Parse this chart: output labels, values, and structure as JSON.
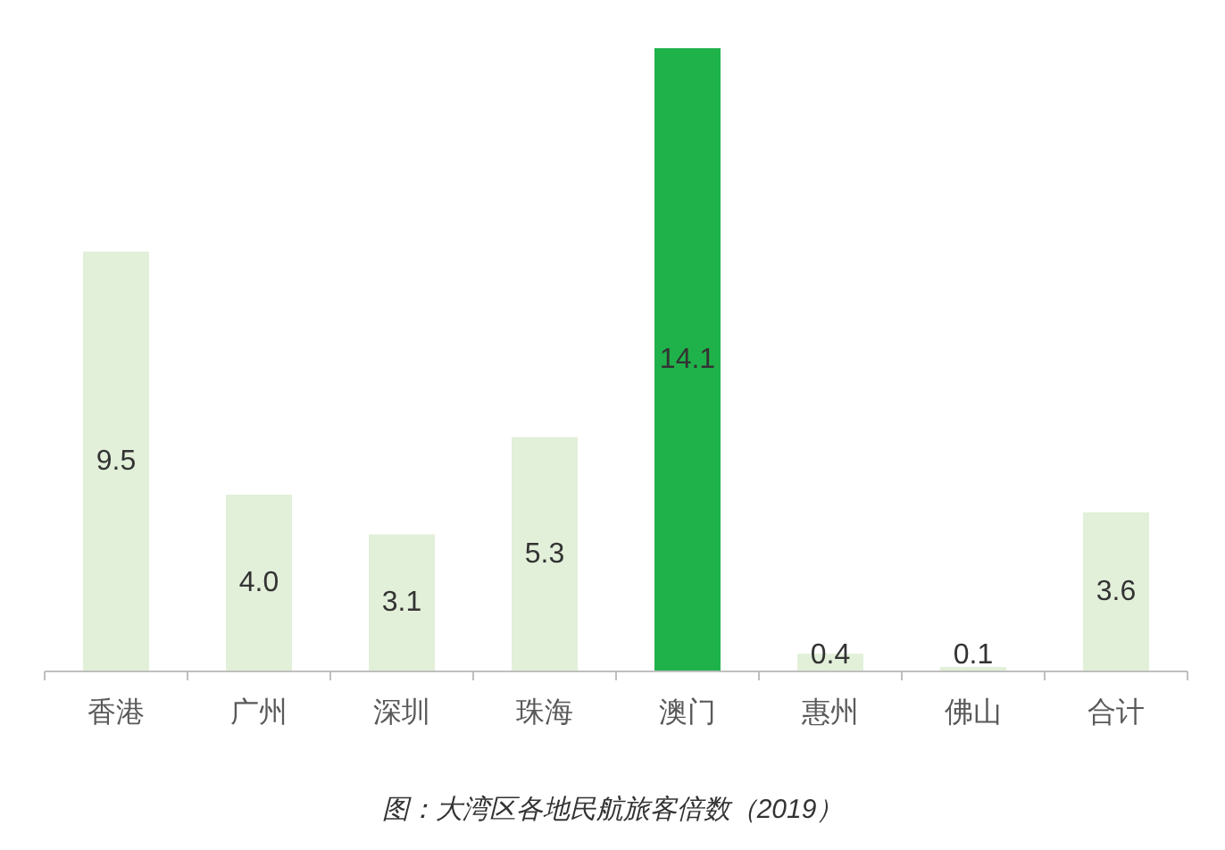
{
  "chart_data": {
    "type": "bar",
    "categories": [
      "香港",
      "广州",
      "深圳",
      "珠海",
      "澳门",
      "惠州",
      "佛山",
      "合计"
    ],
    "values": [
      9.5,
      4.0,
      3.1,
      5.3,
      14.1,
      0.4,
      0.1,
      3.6
    ],
    "value_labels": [
      "9.5",
      "4.0",
      "3.1",
      "5.3",
      "14.1",
      "0.4",
      "0.1",
      "3.6"
    ],
    "colors": [
      "#e2efd9",
      "#e2efd9",
      "#e2efd9",
      "#e2efd9",
      "#1fb24a",
      "#e2efd9",
      "#e2efd9",
      "#e2efd9"
    ],
    "annotations": [
      "图：大湾区各地民航旅客倍数（2019）"
    ]
  }
}
